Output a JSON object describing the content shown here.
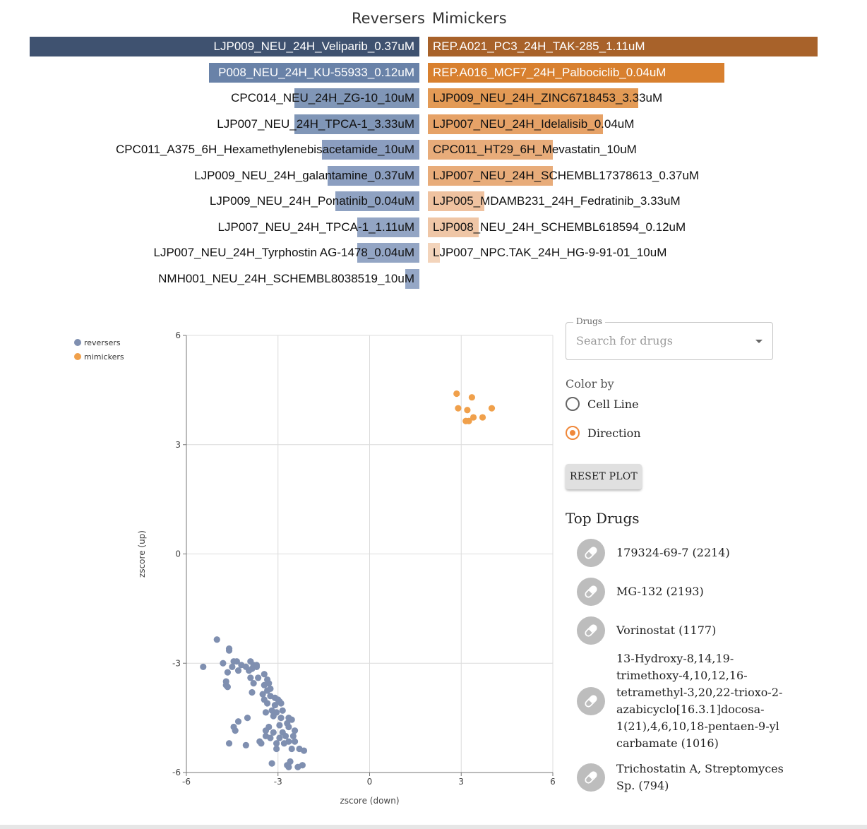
{
  "headers": {
    "reversers": "Reversers",
    "mimickers": "Mimickers"
  },
  "reversers": [
    {
      "label": "LJP009_NEU_24H_Veliparib_0.37uM",
      "score": 1.0,
      "color": "#3f5270"
    },
    {
      "label": "P008_NEU_24H_KU-55933_0.12uM",
      "score": 0.54,
      "color": "#6982a8"
    },
    {
      "label": "CPC014_NEU_24H_ZG-10_10uM",
      "score": 0.32,
      "color": "#8096b7"
    },
    {
      "label": "LJP007_NEU_24H_TPCA-1_3.33uM",
      "score": 0.32,
      "color": "#8096b7"
    },
    {
      "label": "CPC011_A375_6H_Hexamethylenebisacetamide_10uM",
      "score": 0.25,
      "color": "#8b9ec0"
    },
    {
      "label": "LJP009_NEU_24H_galantamine_0.37uM",
      "score": 0.235,
      "color": "#8b9ec0"
    },
    {
      "label": "LJP009_NEU_24H_Ponatinib_0.04uM",
      "score": 0.215,
      "color": "#8fa2c2"
    },
    {
      "label": "LJP007_NEU_24H_TPCA-1_1.11uM",
      "score": 0.16,
      "color": "#93a5c4"
    },
    {
      "label": "LJP007_NEU_24H_Tyrphostin AG-1478_0.04uM",
      "score": 0.16,
      "color": "#93a5c4"
    },
    {
      "label": "NMH001_NEU_24H_SCHEMBL8038519_10uM",
      "score": 0.037,
      "color": "#95a7c6"
    }
  ],
  "mimickers": [
    {
      "label": "REP.A021_PC3_24H_TAK-285_1.11uM",
      "score": 1.0,
      "color": "#a8622a"
    },
    {
      "label": "REP.A016_MCF7_24H_Palbociclib_0.04uM",
      "score": 0.76,
      "color": "#d8802f"
    },
    {
      "label": "LJP009_NEU_24H_ZINC6718453_3.33uM",
      "score": 0.54,
      "color": "#e39a55"
    },
    {
      "label": "LJP007_NEU_24H_Idelalisib_0.04uM",
      "score": 0.45,
      "color": "#e6a267"
    },
    {
      "label": "CPC011_HT29_6H_Mevastatin_10uM",
      "score": 0.32,
      "color": "#e8ac7a"
    },
    {
      "label": "LJP007_NEU_24H_SCHEMBL17378613_0.37uM",
      "score": 0.32,
      "color": "#e8ac7a"
    },
    {
      "label": "LJP005_MDAMB231_24H_Fedratinib_3.33uM",
      "score": 0.145,
      "color": "#efc2a0"
    },
    {
      "label": "LJP008_NEU_24H_SCHEMBL618594_0.12uM",
      "score": 0.13,
      "color": "#efc6a6"
    },
    {
      "label": "LJP007_NPC.TAK_24H_HG-9-91-01_10uM",
      "score": 0.03,
      "color": "#f3d4bb"
    }
  ],
  "scatter": {
    "legend": [
      {
        "label": "reversers",
        "color": "#7f8fb0"
      },
      {
        "label": "mimickers",
        "color": "#f0a04b"
      }
    ],
    "xlabel": "zscore (down)",
    "ylabel": "zscore (up)",
    "xticks": [
      "-6",
      "-3",
      "0",
      "3",
      "6"
    ],
    "yticks": [
      "6",
      "3",
      "0",
      "-3",
      "-6"
    ]
  },
  "chart_data": {
    "type": "scatter",
    "xlabel": "zscore (down)",
    "ylabel": "zscore (up)",
    "xlim": [
      -6,
      6
    ],
    "ylim": [
      -6,
      6
    ],
    "grid": true,
    "legend": "top-left",
    "series": [
      {
        "name": "mimickers",
        "color": "#f0a04b",
        "points": [
          [
            2.85,
            4.4
          ],
          [
            3.35,
            4.3
          ],
          [
            2.9,
            4.0
          ],
          [
            3.2,
            3.95
          ],
          [
            4.0,
            4.0
          ],
          [
            3.7,
            3.75
          ],
          [
            3.4,
            3.75
          ],
          [
            3.25,
            3.65
          ],
          [
            3.15,
            3.65
          ]
        ]
      },
      {
        "name": "reversers",
        "color": "#7f8fb0",
        "points": [
          [
            -5.45,
            -3.1
          ],
          [
            -5.0,
            -2.35
          ],
          [
            -4.6,
            -2.6
          ],
          [
            -4.6,
            -2.65
          ],
          [
            -4.8,
            -3.0
          ],
          [
            -4.45,
            -2.95
          ],
          [
            -4.35,
            -2.95
          ],
          [
            -4.2,
            -3.05
          ],
          [
            -4.5,
            -3.1
          ],
          [
            -4.3,
            -3.2
          ],
          [
            -4.65,
            -3.25
          ],
          [
            -4.7,
            -3.5
          ],
          [
            -4.7,
            -3.6
          ],
          [
            -4.65,
            -3.65
          ],
          [
            -3.9,
            -2.95
          ],
          [
            -3.8,
            -3.05
          ],
          [
            -3.7,
            -3.05
          ],
          [
            -4.05,
            -3.1
          ],
          [
            -3.85,
            -3.15
          ],
          [
            -3.95,
            -3.2
          ],
          [
            -3.7,
            -3.1
          ],
          [
            -3.65,
            -3.4
          ],
          [
            -3.8,
            -3.55
          ],
          [
            -3.9,
            -3.4
          ],
          [
            -3.45,
            -3.3
          ],
          [
            -3.35,
            -3.45
          ],
          [
            -3.3,
            -3.55
          ],
          [
            -3.45,
            -3.6
          ],
          [
            -3.25,
            -3.7
          ],
          [
            -3.35,
            -3.75
          ],
          [
            -3.5,
            -3.85
          ],
          [
            -3.85,
            -3.8
          ],
          [
            -3.1,
            -3.95
          ],
          [
            -3.25,
            -3.9
          ],
          [
            -3.0,
            -4.0
          ],
          [
            -2.95,
            -4.05
          ],
          [
            -2.9,
            -4.1
          ],
          [
            -3.1,
            -4.15
          ],
          [
            -3.45,
            -4.0
          ],
          [
            -3.35,
            -4.1
          ],
          [
            -3.4,
            -4.35
          ],
          [
            -3.2,
            -4.3
          ],
          [
            -3.05,
            -4.35
          ],
          [
            -2.85,
            -4.3
          ],
          [
            -3.15,
            -4.45
          ],
          [
            -2.9,
            -4.5
          ],
          [
            -2.65,
            -4.5
          ],
          [
            -2.55,
            -4.55
          ],
          [
            -2.7,
            -4.65
          ],
          [
            -2.95,
            -4.7
          ],
          [
            -3.3,
            -4.75
          ],
          [
            -3.4,
            -4.85
          ],
          [
            -3.15,
            -4.9
          ],
          [
            -2.85,
            -4.9
          ],
          [
            -2.65,
            -4.75
          ],
          [
            -2.45,
            -4.85
          ],
          [
            -2.95,
            -5.05
          ],
          [
            -2.75,
            -5.0
          ],
          [
            -2.5,
            -5.0
          ],
          [
            -3.25,
            -5.05
          ],
          [
            -3.4,
            -5.0
          ],
          [
            -3.05,
            -5.2
          ],
          [
            -2.8,
            -5.2
          ],
          [
            -2.65,
            -5.15
          ],
          [
            -2.45,
            -5.15
          ],
          [
            -3.6,
            -5.15
          ],
          [
            -3.05,
            -5.35
          ],
          [
            -2.55,
            -5.35
          ],
          [
            -2.3,
            -5.35
          ],
          [
            -2.15,
            -5.4
          ],
          [
            -3.55,
            -5.2
          ],
          [
            -4.0,
            -4.5
          ],
          [
            -4.3,
            -4.6
          ],
          [
            -4.45,
            -4.75
          ],
          [
            -4.4,
            -4.85
          ],
          [
            -4.6,
            -5.2
          ],
          [
            -4.05,
            -5.25
          ],
          [
            -2.6,
            -5.7
          ],
          [
            -3.2,
            -5.75
          ],
          [
            -2.65,
            -5.85
          ],
          [
            -2.35,
            -5.85
          ],
          [
            -2.2,
            -5.8
          ],
          [
            -2.7,
            -5.8
          ]
        ]
      }
    ]
  },
  "panel": {
    "drugs_legend": "Drugs",
    "search_placeholder": "Search for drugs",
    "color_by": "Color by",
    "radio_cell_line": "Cell Line",
    "radio_direction": "Direction",
    "selected_color_by": "Direction",
    "reset_button": "RESET PLOT",
    "top_drugs_title": "Top Drugs",
    "top_drugs": [
      {
        "label": "179324-69-7 (2214)",
        "icon": "pill-icon"
      },
      {
        "label": "MG-132 (2193)",
        "icon": "pill-icon"
      },
      {
        "label": "Vorinostat (1177)",
        "icon": "pill-icon"
      },
      {
        "label": "13-Hydroxy-8,14,19-trimethoxy-4,10,12,16-tetramethyl-3,20,22-trioxo-2-azabicyclo[16.3.1]docosa-1(21),4,6,10,18-pentaen-9-yl carbamate (1016)",
        "icon": "pill-icon"
      },
      {
        "label": "Trichostatin A, Streptomyces Sp. (794)",
        "icon": "pill-icon"
      }
    ]
  }
}
